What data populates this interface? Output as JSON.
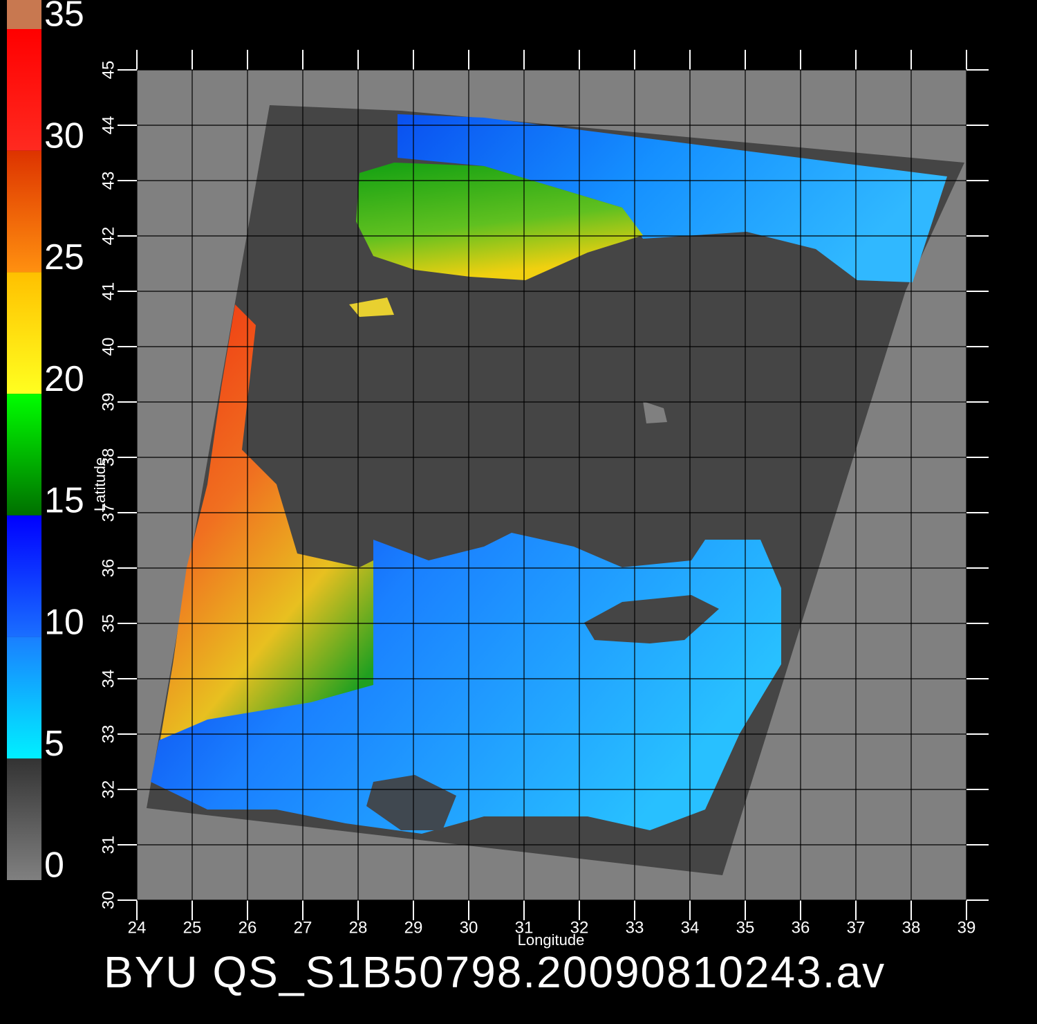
{
  "chart_data": {
    "type": "map",
    "title": "BYU QS_S1B50798.20090810243.av",
    "xlabel": "Longitude",
    "ylabel": "Latitude",
    "xlim": [
      24,
      39
    ],
    "ylim": [
      30,
      45
    ],
    "xticks": [
      24,
      25,
      26,
      27,
      28,
      29,
      30,
      31,
      32,
      33,
      34,
      35,
      36,
      37,
      38,
      39
    ],
    "yticks": [
      30,
      31,
      32,
      33,
      34,
      35,
      36,
      37,
      38,
      39,
      40,
      41,
      42,
      43,
      44,
      45
    ],
    "grid": true,
    "colorbar": {
      "lim": [
        0,
        35
      ],
      "ticks": [
        0,
        5,
        10,
        15,
        20,
        25,
        30,
        35
      ],
      "colors": [
        [
          "#808080",
          "#333333"
        ],
        [
          "#00f0ff",
          "#1a7fff"
        ],
        [
          "#1a6fff",
          "#0000ff"
        ],
        [
          "#007000",
          "#00ff00"
        ],
        [
          "#ffff20",
          "#ffc000"
        ],
        [
          "#ff9010",
          "#dd3300"
        ],
        [
          "#ff2a20",
          "#ff0000"
        ]
      ],
      "over_color": "#c87850"
    }
  }
}
